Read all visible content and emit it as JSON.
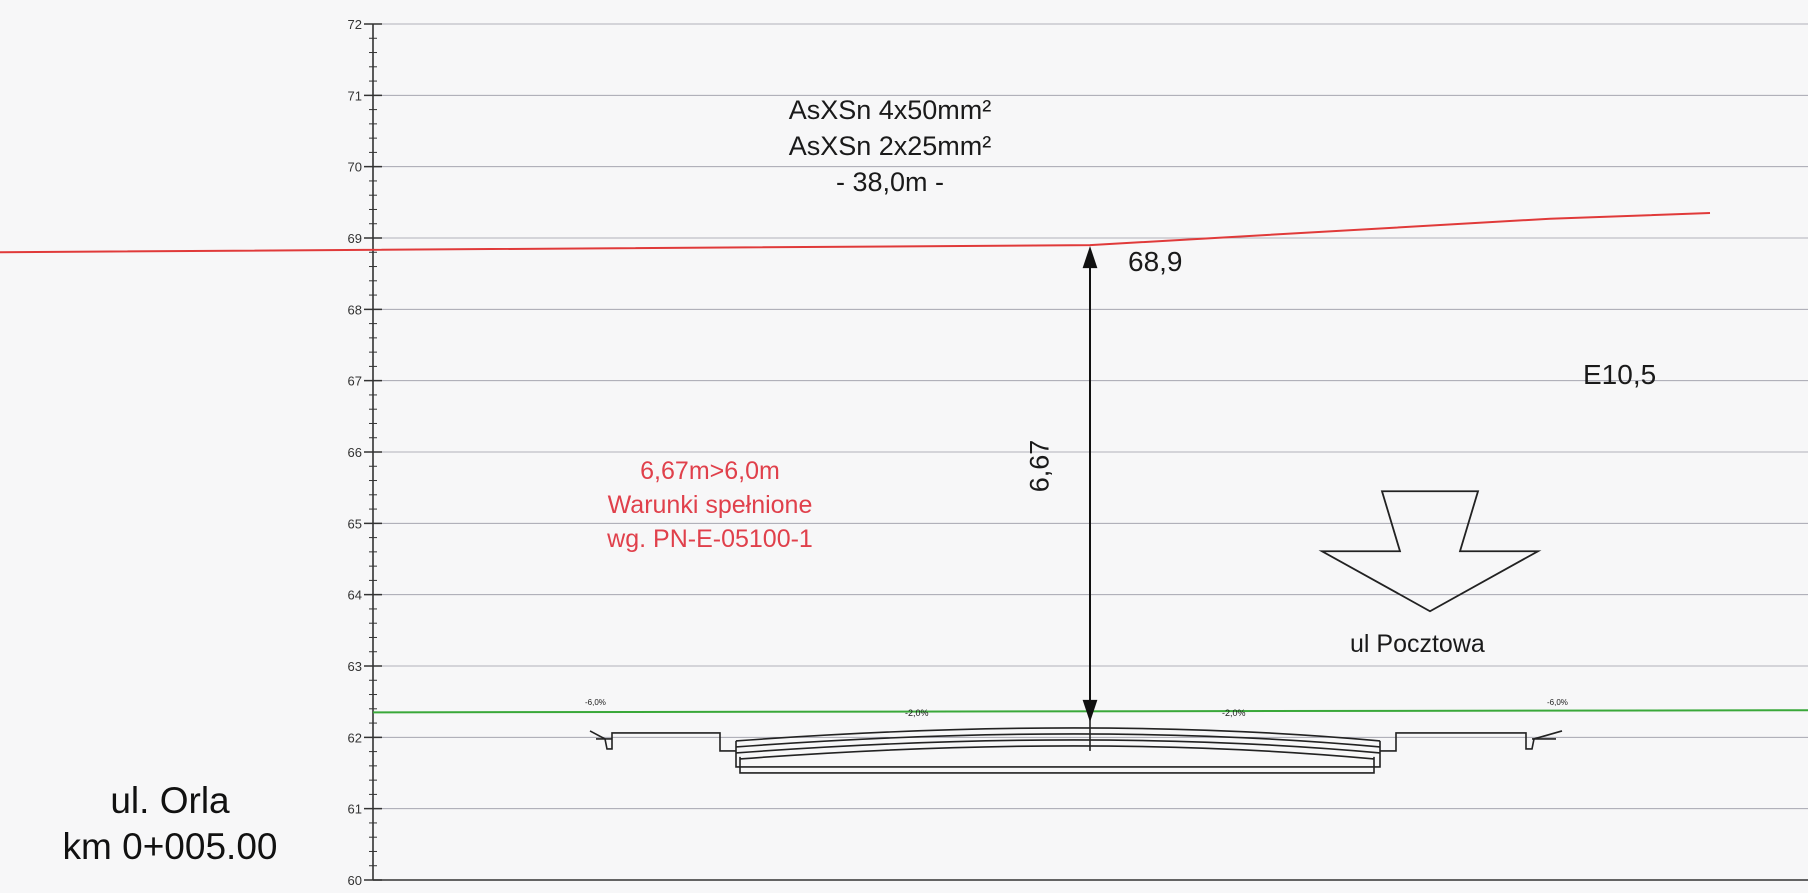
{
  "y_axis": {
    "min": 60,
    "max": 72,
    "tick_labels": [
      "60",
      "61",
      "62",
      "63",
      "64",
      "65",
      "66",
      "67",
      "68",
      "69",
      "70",
      "71",
      "72"
    ]
  },
  "cable": {
    "line1": "AsXSn 4x50mm²",
    "line2": "AsXSn 2x25mm²",
    "line3": "- 38,0m -",
    "color": "#e03a3a",
    "elevation_left": 68.8,
    "elevation_right": 69.35
  },
  "ground": {
    "color": "#3aa83a",
    "elevation": 62.35
  },
  "clearance": {
    "cable_elevation_label": "68,9",
    "distance_label": "6,67",
    "cable_elevation": 68.9,
    "road_elevation": 62.23
  },
  "compliance": {
    "line1": "6,67m>6,0m",
    "line2": "Warunki spełnione",
    "line3": "wg. PN-E-05100-1",
    "color": "#e0404b"
  },
  "pole_label": "E10,5",
  "street_label": "ul Pocztowa",
  "road_section": {
    "slope_left_outer": "-6,0%",
    "slope_left": "-2,0%",
    "slope_right": "-2,0%",
    "slope_right_outer": "-6,0%"
  },
  "station": {
    "street": "ul. Orla",
    "km": "km 0+005.00"
  }
}
